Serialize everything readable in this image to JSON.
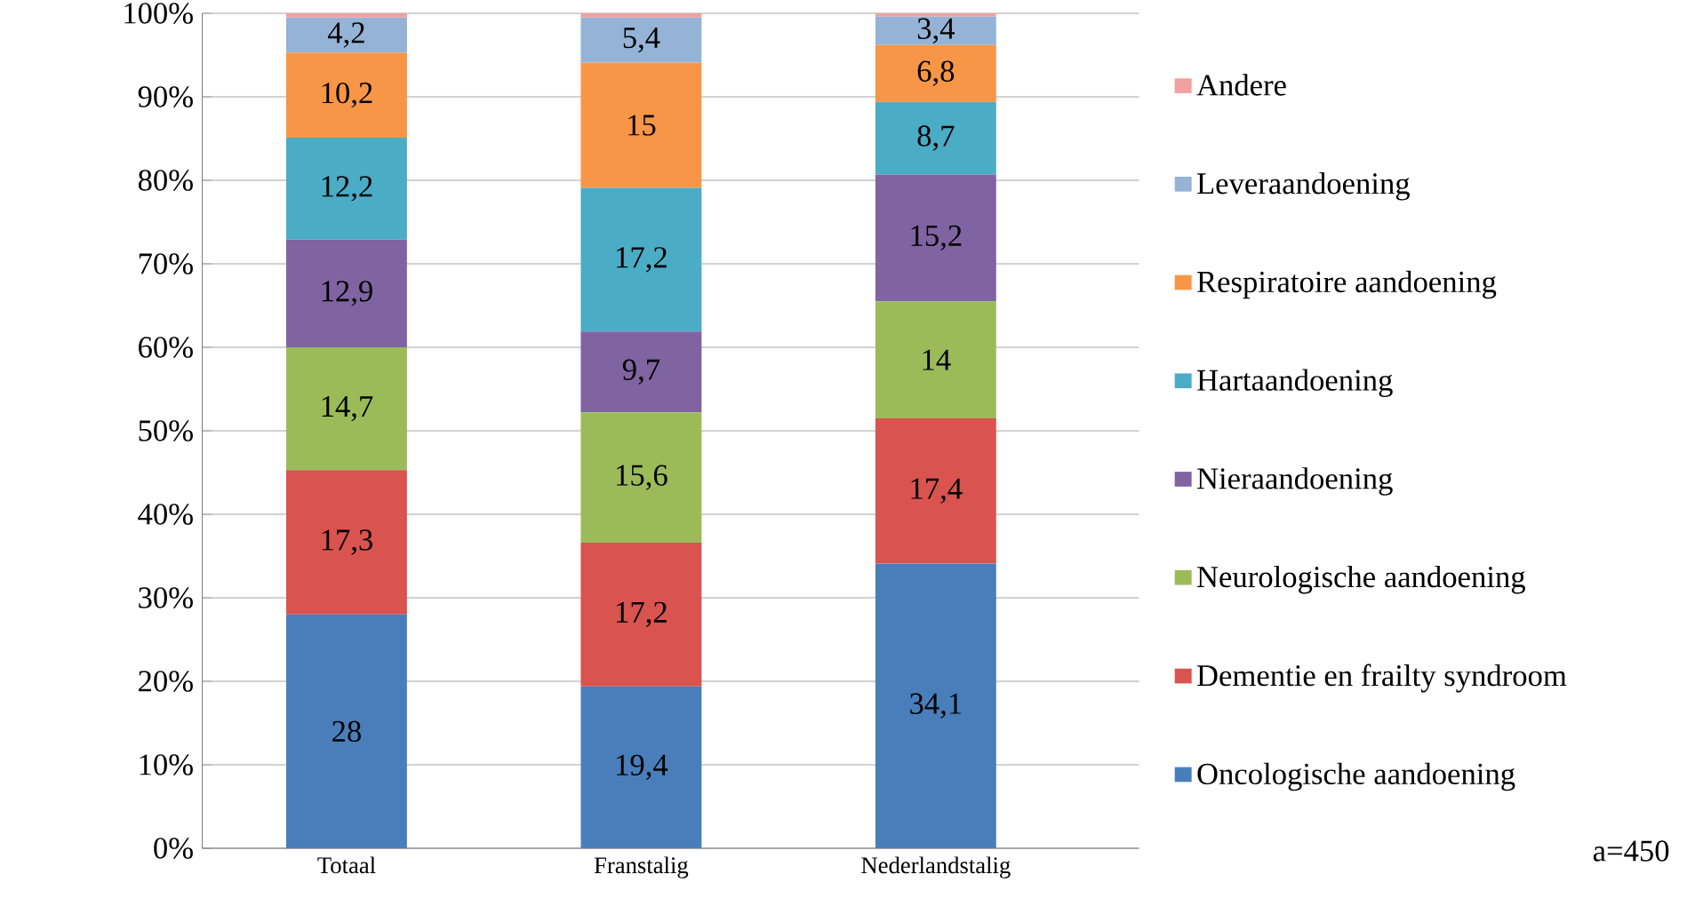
{
  "chart_data": {
    "type": "bar",
    "stacked": true,
    "categories": [
      "Totaal",
      "Franstalig",
      "Nederlandstalig"
    ],
    "series": [
      {
        "name": "Oncologische aandoening",
        "color": "#4a7ebb",
        "values": [
          28,
          19.4,
          34.1
        ],
        "value_labels": [
          "28",
          "19,4",
          "34,1"
        ]
      },
      {
        "name": "Dementie en frailty syndroom",
        "color": "#d9534f",
        "values": [
          17.3,
          17.2,
          17.4
        ],
        "value_labels": [
          "17,3",
          "17,2",
          "17,4"
        ]
      },
      {
        "name": "Neurologische aandoening",
        "color": "#9bbb59",
        "values": [
          14.7,
          15.6,
          14
        ],
        "value_labels": [
          "14,7",
          "15,6",
          "14"
        ]
      },
      {
        "name": "Nieraandoening",
        "color": "#8064a2",
        "values": [
          12.9,
          9.7,
          15.2
        ],
        "value_labels": [
          "12,9",
          "9,7",
          "15,2"
        ]
      },
      {
        "name": "Hartaandoening",
        "color": "#4bacc6",
        "values": [
          12.2,
          17.2,
          8.7
        ],
        "value_labels": [
          "12,2",
          "17,2",
          "8,7"
        ]
      },
      {
        "name": "Respiratoire aandoening",
        "color": "#f79646",
        "values": [
          10.2,
          15,
          6.8
        ],
        "value_labels": [
          "10,2",
          "15",
          "6,8"
        ]
      },
      {
        "name": "Leveraandoening",
        "color": "#95b3d7",
        "values": [
          4.2,
          5.4,
          3.4
        ],
        "value_labels": [
          "4,2",
          "5,4",
          "3,4"
        ]
      },
      {
        "name": "Andere",
        "color": "#f2a0a0",
        "values": [
          0.5,
          0.5,
          0.4
        ]
      }
    ],
    "ylim": [
      0,
      100
    ],
    "yticks": [
      {
        "value": 0,
        "label": "0%"
      },
      {
        "value": 10,
        "label": "10%"
      },
      {
        "value": 20,
        "label": "20%"
      },
      {
        "value": 30,
        "label": "30%"
      },
      {
        "value": 40,
        "label": "40%"
      },
      {
        "value": 50,
        "label": "50%"
      },
      {
        "value": 60,
        "label": "60%"
      },
      {
        "value": 70,
        "label": "70%"
      },
      {
        "value": 80,
        "label": "80%"
      },
      {
        "value": 90,
        "label": "90%"
      },
      {
        "value": 100,
        "label": "100%"
      }
    ],
    "grid": "y",
    "legend": "right",
    "annotations": [
      "a=450"
    ]
  }
}
